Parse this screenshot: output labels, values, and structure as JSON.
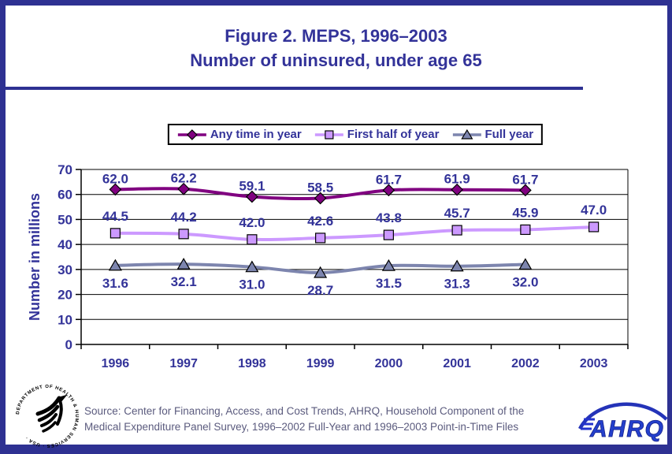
{
  "chart_data": {
    "type": "line",
    "title": "Figure 2. MEPS, 1996–2003",
    "subtitle": "Number of uninsured, under age 65",
    "categories": [
      "1996",
      "1997",
      "1998",
      "1999",
      "2000",
      "2001",
      "2002",
      "2003"
    ],
    "series": [
      {
        "name": "Any time in year",
        "values": [
          62.0,
          62.2,
          59.1,
          58.5,
          61.7,
          61.9,
          61.7
        ],
        "color": "#800080",
        "marker": "diamond",
        "label_position": "above",
        "label_dy": -8
      },
      {
        "name": "First half of year",
        "values": [
          44.5,
          44.2,
          42.0,
          42.6,
          43.8,
          45.7,
          45.9,
          47.0
        ],
        "color": "#CC99FF",
        "marker": "square",
        "label_position": "above",
        "label_dy": -16
      },
      {
        "name": "Full year",
        "values": [
          31.6,
          32.1,
          31.0,
          28.7,
          31.5,
          31.3,
          32.0
        ],
        "color": "#7D85AE",
        "marker": "triangle",
        "label_position": "below",
        "label_dy": 28
      }
    ],
    "xlabel": "",
    "ylabel": "Number in millions",
    "ylim": [
      0,
      70
    ],
    "ytick_step": 10,
    "grid": true,
    "legend_position": "top",
    "smoothed_lines": true
  },
  "source": {
    "line1": "Source: Center for Financing, Access, and Cost Trends, AHRQ, Household Component of the",
    "line2": "Medical Expenditure Panel Survey, 1996–2002 Full-Year and 1996–2003 Point-in-Time Files"
  },
  "logos": {
    "hhs_seal_text": "DEPARTMENT OF HEALTH & HUMAN SERVICES · USA ·",
    "ahrq_text": "AHRQ"
  },
  "colors": {
    "navy_border": "#2E3192",
    "text_blue": "#333399",
    "source_text": "#5B5B7E",
    "axis_black": "#000000",
    "background": "#FFFFFF"
  }
}
